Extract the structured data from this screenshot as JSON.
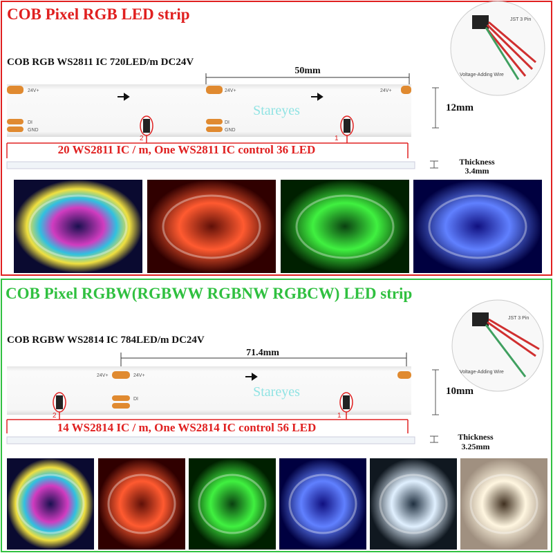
{
  "sections": [
    {
      "title": "COB Pixel RGB LED strip",
      "spec": "COB RGB WS2811 IC 720LED/m DC24V",
      "length": "50mm",
      "width": "12mm",
      "watermark": "Stareyes",
      "ic_note": "20 WS2811 IC / m, One WS2811 IC control  36 LED",
      "thickness_label": "Thickness",
      "thickness": "3.4mm",
      "connector": {
        "pin": "JST 3 Pin",
        "wire": "Voltage-Adding Wire"
      },
      "pads": {
        "power": "24V+",
        "data": "DI",
        "ground": "GND"
      },
      "cut_marks": [
        "2",
        "1"
      ]
    },
    {
      "title": "COB Pixel RGBW(RGBWW RGBNW RGBCW) LED strip",
      "spec": "COB RGBW WS2814 IC 784LED/m DC24V",
      "length": "71.4mm",
      "width": "10mm",
      "watermark": "Stareyes",
      "ic_note": "14 WS2814 IC / m, One WS2814 IC control  56 LED",
      "thickness_label": "Thickness",
      "thickness": "3.25mm",
      "connector": {
        "pin": "JST 3 Pin",
        "wire": "Voltage-Adding Wire"
      },
      "pads": {
        "power": "24V+",
        "data": "DI"
      },
      "cut_marks": [
        "2",
        "1"
      ]
    }
  ]
}
